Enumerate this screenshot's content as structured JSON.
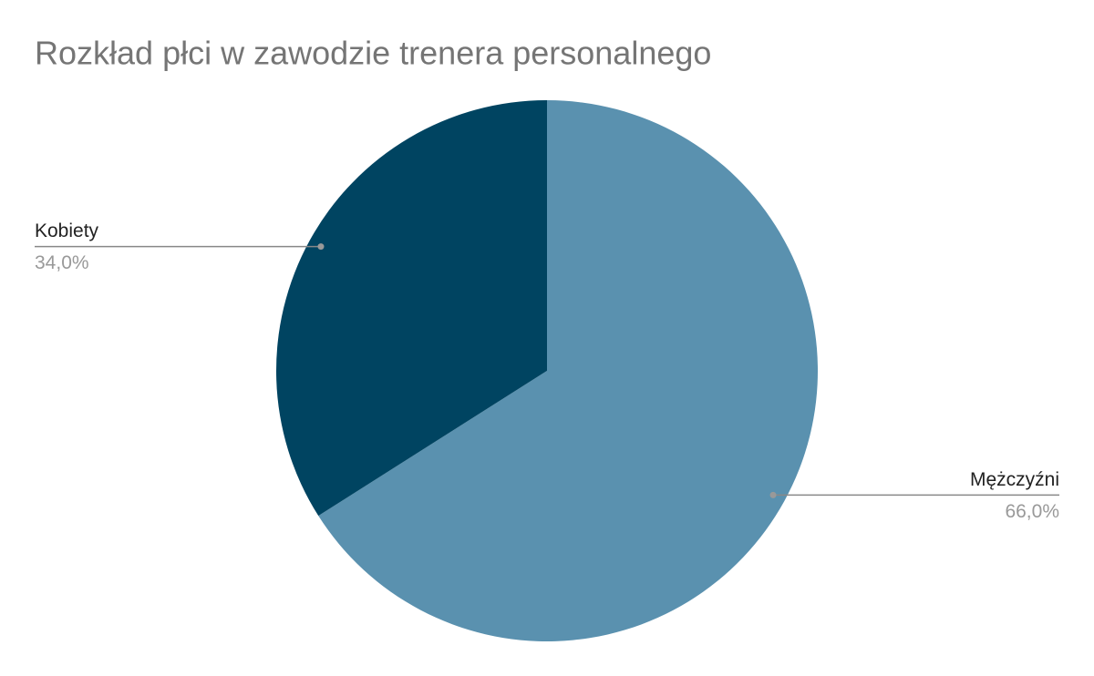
{
  "chart_data": {
    "type": "pie",
    "title": "Rozkład płci w zawodzie trenera personalnego",
    "categories": [
      "Mężczyźni",
      "Kobiety"
    ],
    "values": [
      66,
      34
    ],
    "value_labels": [
      "66,0%",
      "34,0%"
    ],
    "colors": [
      "#5a91af",
      "#004461"
    ]
  }
}
